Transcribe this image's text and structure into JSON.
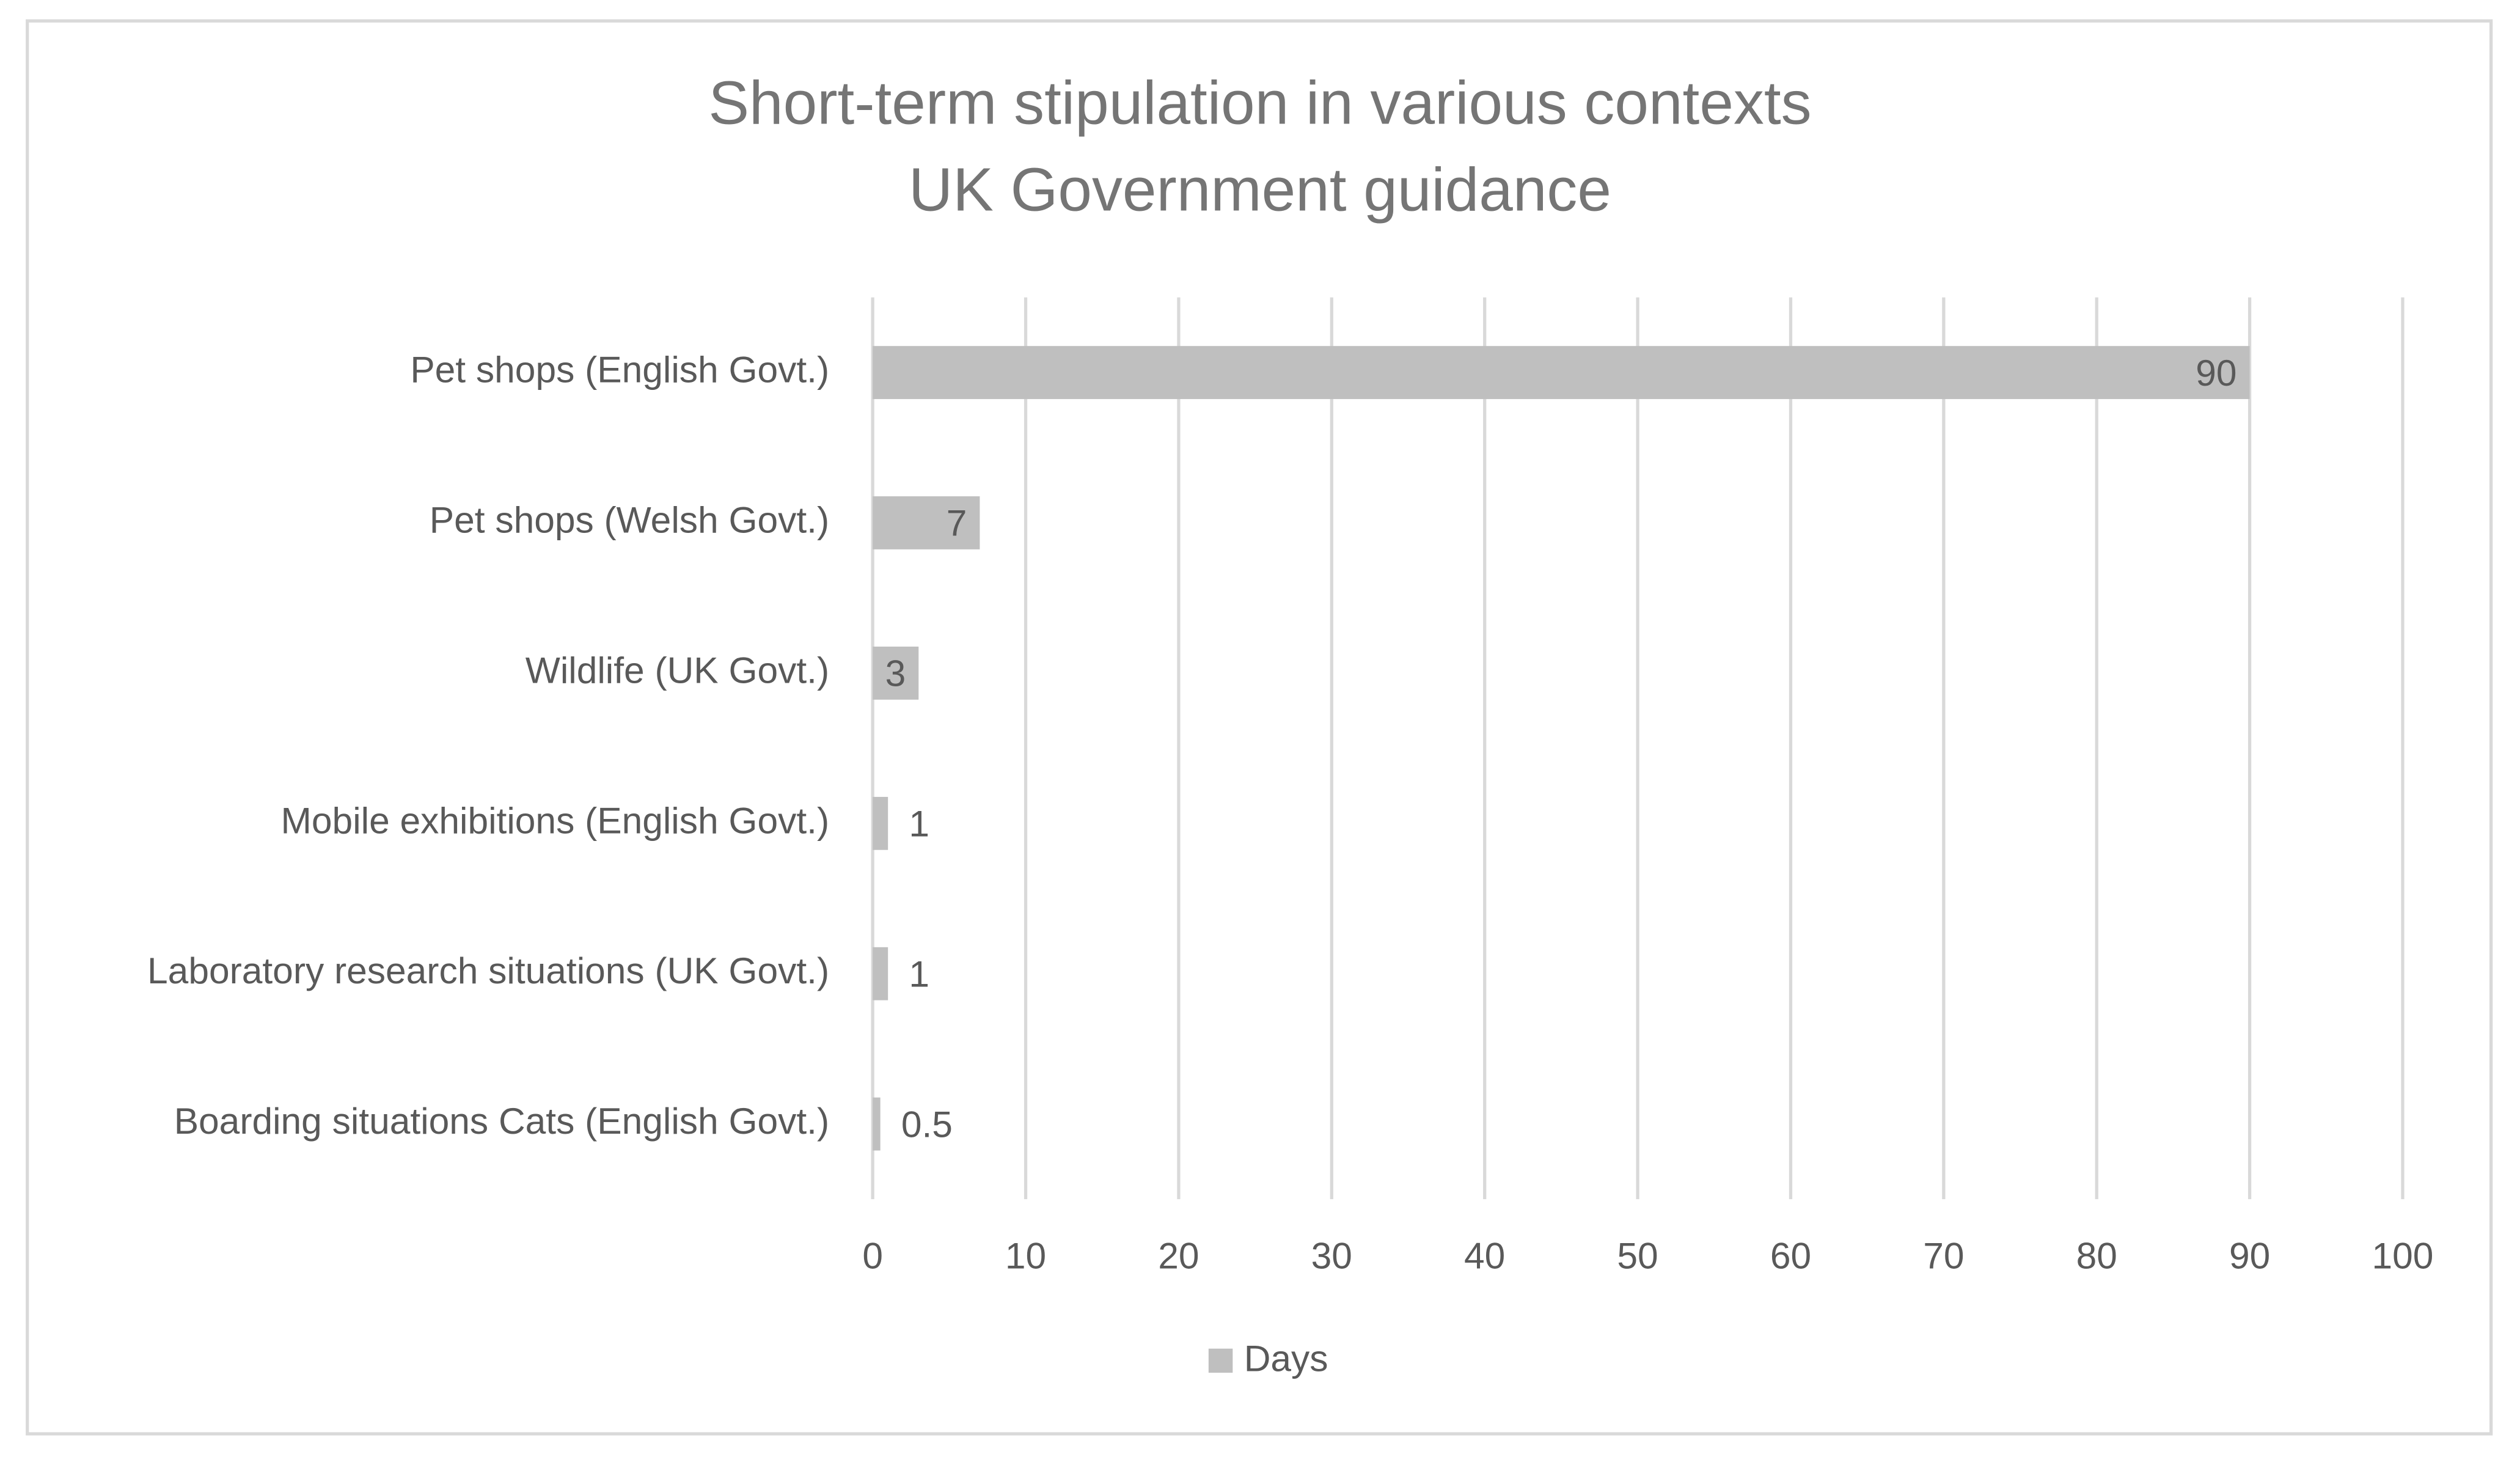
{
  "chart_data": {
    "type": "bar",
    "orientation": "horizontal",
    "title": "Short-term stipulation in various contexts",
    "subtitle": "UK Government guidance",
    "categories": [
      "Pet shops (English Govt.)",
      "Pet shops (Welsh Govt.)",
      "Wildlife (UK Govt.)",
      "Mobile exhibitions (English Govt.)",
      "Laboratory research situations (UK Govt.)",
      "Boarding situations Cats (English Govt.)"
    ],
    "series": [
      {
        "name": "Days",
        "color": "#bfbfbf",
        "values": [
          90,
          7,
          3,
          1,
          1,
          0.5
        ]
      }
    ],
    "xlim": [
      0,
      100
    ],
    "xticks": [
      0,
      10,
      20,
      30,
      40,
      50,
      60,
      70,
      80,
      90,
      100
    ],
    "grid": true,
    "legend": "bottom"
  }
}
